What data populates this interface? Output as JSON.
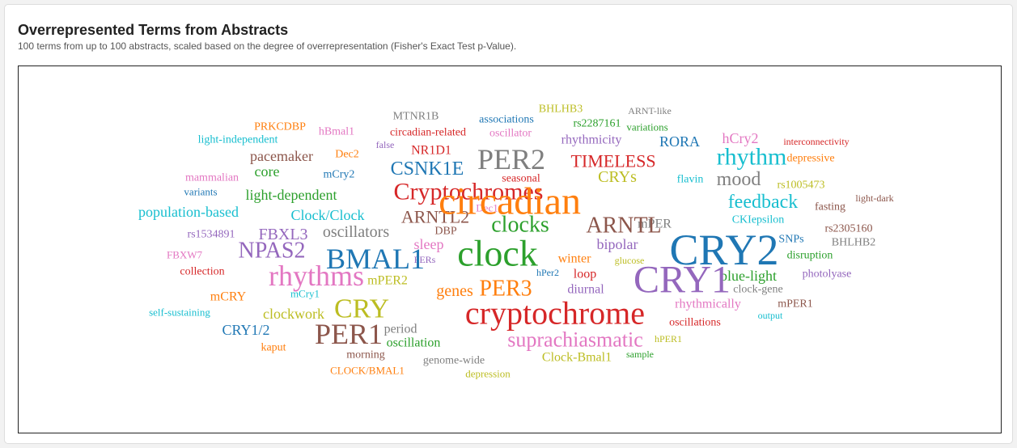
{
  "header": {
    "title": "Overrepresented Terms from Abstracts",
    "subtitle": "100 terms from up to 100 abstracts, scaled based on the degree of overrepresentation (Fisher's Exact Test p-Value)."
  },
  "chart_data": {
    "type": "wordcloud",
    "words": [
      {
        "text": "circadian",
        "weight": 48,
        "color": "#ff7f0e"
      },
      {
        "text": "CRY2",
        "weight": 54,
        "color": "#1f77b4"
      },
      {
        "text": "CRY1",
        "weight": 48,
        "color": "#9467bd"
      },
      {
        "text": "clock",
        "weight": 46,
        "color": "#2ca02c"
      },
      {
        "text": "cryptochrome",
        "weight": 40,
        "color": "#d62728"
      },
      {
        "text": "PER2",
        "weight": 36,
        "color": "#7f7f7f"
      },
      {
        "text": "rhythms",
        "weight": 36,
        "color": "#e377c2"
      },
      {
        "text": "BMAL1",
        "weight": 36,
        "color": "#1f77b4"
      },
      {
        "text": "PER1",
        "weight": 36,
        "color": "#8c564b"
      },
      {
        "text": "Cryptochromes",
        "weight": 30,
        "color": "#d62728"
      },
      {
        "text": "CRY",
        "weight": 34,
        "color": "#bcbd22"
      },
      {
        "text": "rhythm",
        "weight": 30,
        "color": "#17becf"
      },
      {
        "text": "PER3",
        "weight": 28,
        "color": "#ff7f0e"
      },
      {
        "text": "NPAS2",
        "weight": 28,
        "color": "#9467bd"
      },
      {
        "text": "ARNTL",
        "weight": 28,
        "color": "#8c564b"
      },
      {
        "text": "suprachiasmatic",
        "weight": 26,
        "color": "#e377c2"
      },
      {
        "text": "clocks",
        "weight": 28,
        "color": "#2ca02c"
      },
      {
        "text": "CSNK1E",
        "weight": 24,
        "color": "#1f77b4"
      },
      {
        "text": "ARNTL2",
        "weight": 22,
        "color": "#8c564b"
      },
      {
        "text": "mood",
        "weight": 24,
        "color": "#7f7f7f"
      },
      {
        "text": "feedback",
        "weight": 24,
        "color": "#17becf"
      },
      {
        "text": "TIMELESS",
        "weight": 22,
        "color": "#d62728"
      },
      {
        "text": "oscillators",
        "weight": 20,
        "color": "#7f7f7f"
      },
      {
        "text": "FBXL3",
        "weight": 20,
        "color": "#9467bd"
      },
      {
        "text": "genes",
        "weight": 20,
        "color": "#ff7f0e"
      },
      {
        "text": "CRYs",
        "weight": 20,
        "color": "#bcbd22"
      },
      {
        "text": "pacemaker",
        "weight": 18,
        "color": "#8c564b"
      },
      {
        "text": "core",
        "weight": 18,
        "color": "#2ca02c"
      },
      {
        "text": "light-dependent",
        "weight": 18,
        "color": "#2ca02c"
      },
      {
        "text": "population-based",
        "weight": 18,
        "color": "#17becf"
      },
      {
        "text": "Clock/Clock",
        "weight": 18,
        "color": "#17becf"
      },
      {
        "text": "sleep",
        "weight": 18,
        "color": "#e377c2"
      },
      {
        "text": "bipolar",
        "weight": 18,
        "color": "#9467bd"
      },
      {
        "text": "blue-light",
        "weight": 18,
        "color": "#2ca02c"
      },
      {
        "text": "clockwork",
        "weight": 18,
        "color": "#bcbd22"
      },
      {
        "text": "CRY1/2",
        "weight": 18,
        "color": "#1f77b4"
      },
      {
        "text": "NR1D1",
        "weight": 16,
        "color": "#d62728"
      },
      {
        "text": "RORA",
        "weight": 18,
        "color": "#1f77b4"
      },
      {
        "text": "rhythmicity",
        "weight": 16,
        "color": "#9467bd"
      },
      {
        "text": "hCry2",
        "weight": 18,
        "color": "#e377c2"
      },
      {
        "text": "mCRY",
        "weight": 16,
        "color": "#ff7f0e"
      },
      {
        "text": "winter",
        "weight": 16,
        "color": "#ff7f0e"
      },
      {
        "text": "loop",
        "weight": 16,
        "color": "#d62728"
      },
      {
        "text": "rhythmically",
        "weight": 16,
        "color": "#e377c2"
      },
      {
        "text": "oscillation",
        "weight": 16,
        "color": "#2ca02c"
      },
      {
        "text": "Clock-Bmal1",
        "weight": 16,
        "color": "#bcbd22"
      },
      {
        "text": "period",
        "weight": 16,
        "color": "#7f7f7f"
      },
      {
        "text": "mPER2",
        "weight": 16,
        "color": "#bcbd22"
      },
      {
        "text": "diurnal",
        "weight": 16,
        "color": "#9467bd"
      },
      {
        "text": "morning",
        "weight": 14,
        "color": "#8c564b"
      },
      {
        "text": "mPER",
        "weight": 16,
        "color": "#7f7f7f"
      },
      {
        "text": "CKIepsilon",
        "weight": 14,
        "color": "#17becf"
      },
      {
        "text": "associations",
        "weight": 14,
        "color": "#1f77b4"
      },
      {
        "text": "rs2287161",
        "weight": 14,
        "color": "#2ca02c"
      },
      {
        "text": "seasonal",
        "weight": 14,
        "color": "#d62728"
      },
      {
        "text": "flavin",
        "weight": 14,
        "color": "#17becf"
      },
      {
        "text": "Dec2",
        "weight": 14,
        "color": "#ff7f0e"
      },
      {
        "text": "mCry2",
        "weight": 14,
        "color": "#1f77b4"
      },
      {
        "text": "DBP",
        "weight": 14,
        "color": "#8c564b"
      },
      {
        "text": "SNPs",
        "weight": 14,
        "color": "#1f77b4"
      },
      {
        "text": "rs2305160",
        "weight": 14,
        "color": "#8c564b"
      },
      {
        "text": "rs1005473",
        "weight": 14,
        "color": "#bcbd22"
      },
      {
        "text": "disruption",
        "weight": 14,
        "color": "#2ca02c"
      },
      {
        "text": "oscillations",
        "weight": 14,
        "color": "#d62728"
      },
      {
        "text": "depressive",
        "weight": 14,
        "color": "#ff7f0e"
      },
      {
        "text": "fasting",
        "weight": 14,
        "color": "#8c564b"
      },
      {
        "text": "photolyase",
        "weight": 14,
        "color": "#9467bd"
      },
      {
        "text": "clock-gene",
        "weight": 14,
        "color": "#7f7f7f"
      },
      {
        "text": "genome-wide",
        "weight": 14,
        "color": "#7f7f7f"
      },
      {
        "text": "kaput",
        "weight": 14,
        "color": "#ff7f0e"
      },
      {
        "text": "mPER1",
        "weight": 14,
        "color": "#8c564b"
      },
      {
        "text": "BHLHB2",
        "weight": 14,
        "color": "#7f7f7f"
      },
      {
        "text": "circadian-related",
        "weight": 14,
        "color": "#d62728"
      },
      {
        "text": "PRKCDBP",
        "weight": 14,
        "color": "#ff7f0e"
      },
      {
        "text": "MTNR1B",
        "weight": 14,
        "color": "#7f7f7f"
      },
      {
        "text": "BHLHB3",
        "weight": 14,
        "color": "#bcbd22"
      },
      {
        "text": "oscillator",
        "weight": 14,
        "color": "#e377c2"
      },
      {
        "text": "variations",
        "weight": 13,
        "color": "#2ca02c"
      },
      {
        "text": "light-independent",
        "weight": 14,
        "color": "#17becf"
      },
      {
        "text": "hBmal1",
        "weight": 14,
        "color": "#e377c2"
      },
      {
        "text": "mammalian",
        "weight": 14,
        "color": "#e377c2"
      },
      {
        "text": "variants",
        "weight": 13,
        "color": "#1f77b4"
      },
      {
        "text": "rs1534891",
        "weight": 14,
        "color": "#9467bd"
      },
      {
        "text": "FBXW7",
        "weight": 13,
        "color": "#e377c2"
      },
      {
        "text": "collection",
        "weight": 14,
        "color": "#d62728"
      },
      {
        "text": "self-sustaining",
        "weight": 13,
        "color": "#17becf"
      },
      {
        "text": "mCry1",
        "weight": 13,
        "color": "#17becf"
      },
      {
        "text": "CLOCK/BMAL1",
        "weight": 13,
        "color": "#ff7f0e"
      },
      {
        "text": "depression",
        "weight": 13,
        "color": "#bcbd22"
      },
      {
        "text": "sample",
        "weight": 12,
        "color": "#2ca02c"
      },
      {
        "text": "hPER1",
        "weight": 12,
        "color": "#bcbd22"
      },
      {
        "text": "output",
        "weight": 12,
        "color": "#17becf"
      },
      {
        "text": "glucose",
        "weight": 12,
        "color": "#bcbd22"
      },
      {
        "text": "hPer2",
        "weight": 12,
        "color": "#1f77b4"
      },
      {
        "text": "PERs",
        "weight": 12,
        "color": "#9467bd"
      },
      {
        "text": "Dec1",
        "weight": 13,
        "color": "#e377c2"
      },
      {
        "text": "false",
        "weight": 12,
        "color": "#9467bd"
      },
      {
        "text": "ARNT-like",
        "weight": 12,
        "color": "#7f7f7f"
      },
      {
        "text": "interconnectivity",
        "weight": 12,
        "color": "#d62728"
      },
      {
        "text": "light-dark",
        "weight": 12,
        "color": "#8c564b"
      }
    ]
  }
}
